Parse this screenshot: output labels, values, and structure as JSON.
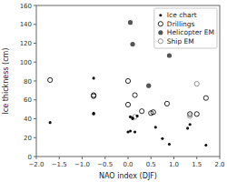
{
  "chart_data": {
    "type": "scatter",
    "title": "",
    "xlabel": "NAO index (DJF)",
    "ylabel": "Ice thickness (cm)",
    "xlim": [
      -2.0,
      2.0
    ],
    "ylim": [
      0,
      160
    ],
    "xticks": [
      {
        "value": -2.0,
        "label": "−2.0"
      },
      {
        "value": -1.5,
        "label": "−1.5"
      },
      {
        "value": -1.0,
        "label": "−1.0"
      },
      {
        "value": -0.5,
        "label": "−0.5"
      },
      {
        "value": 0.0,
        "label": "0.0"
      },
      {
        "value": 0.5,
        "label": "0.5"
      },
      {
        "value": 1.0,
        "label": "1.0"
      },
      {
        "value": 1.5,
        "label": "1.5"
      },
      {
        "value": 2.0,
        "label": "2.0"
      }
    ],
    "yticks": [
      0,
      20,
      40,
      60,
      80,
      100,
      120,
      140,
      160
    ],
    "grid": false,
    "legend": "top-right",
    "series": [
      {
        "name": "Ice chart",
        "color": "#111111",
        "marker": "circle-small",
        "x": [
          -1.7,
          -0.75,
          -0.75,
          -0.75,
          0.0,
          0.05,
          0.05,
          0.1,
          0.1,
          0.15,
          0.2,
          0.6,
          0.75,
          0.9,
          1.3,
          1.35,
          1.7
        ],
        "values": [
          36,
          83,
          45,
          46,
          26,
          27,
          42,
          40,
          41,
          26,
          43,
          31,
          19,
          13,
          30,
          34,
          12
        ]
      },
      {
        "name": "Drillings",
        "color": "#111111",
        "marker": "circle-open",
        "x": [
          -1.7,
          -0.75,
          -0.75,
          0.0,
          0.0,
          0.15,
          0.3,
          0.5,
          0.55,
          0.85,
          1.35,
          1.5,
          1.7
        ],
        "values": [
          81,
          64,
          65,
          80,
          55,
          65,
          48,
          46,
          47,
          56,
          45,
          45,
          62
        ]
      },
      {
        "name": "Helicopter EM",
        "color": "#555555",
        "marker": "circle",
        "x": [
          0.05,
          0.1,
          0.45,
          0.9
        ],
        "values": [
          142,
          119,
          75,
          107
        ]
      },
      {
        "name": "Ship EM",
        "color": "#888888",
        "marker": "circle-open",
        "x": [
          0.15,
          1.35,
          1.5
        ],
        "values": [
          42,
          43,
          77
        ]
      }
    ]
  }
}
